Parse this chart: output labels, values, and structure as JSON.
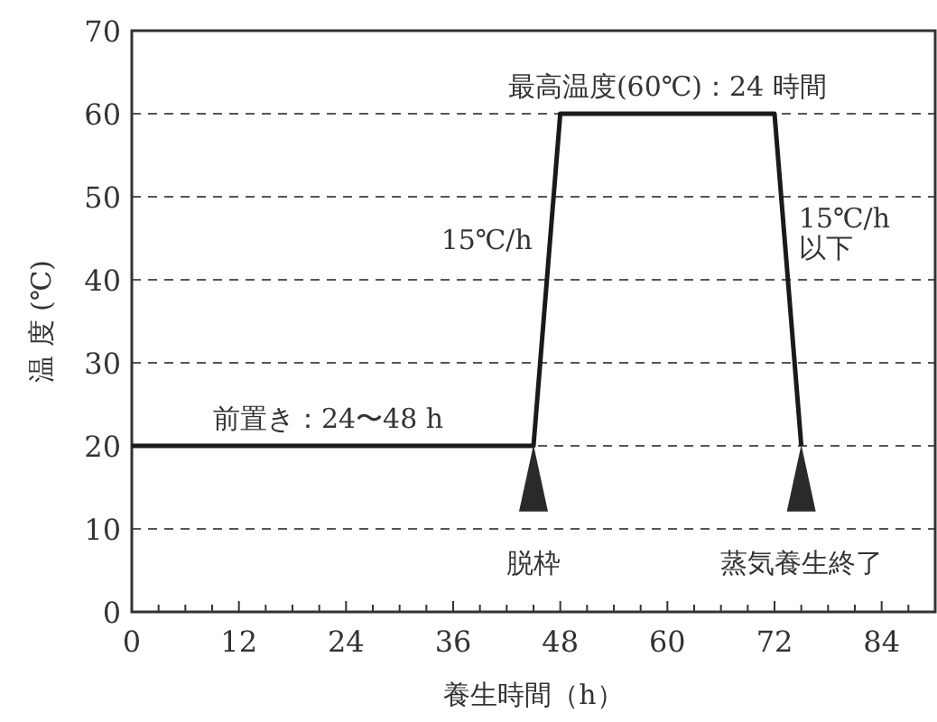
{
  "chart_data": {
    "type": "line",
    "xlabel": "養生時間（h）",
    "ylabel": "温 度 (℃)",
    "series": [
      {
        "color": "#1a1a1a",
        "x": [
          0,
          45,
          48,
          72,
          75
        ],
        "values": [
          20,
          20,
          60,
          60,
          20
        ]
      },
      {
        "type": "scatter",
        "marker": "triangle",
        "color": "#2a2a2a",
        "x": [
          45,
          75
        ],
        "values": [
          16,
          16
        ]
      }
    ],
    "xlim": [
      0,
      90
    ],
    "ylim": [
      0,
      70
    ],
    "xticks": [
      0,
      {
        "value": 3,
        "label": null
      },
      {
        "value": 6,
        "label": null
      },
      {
        "value": 9,
        "label": null
      },
      12,
      {
        "value": 15,
        "label": null
      },
      {
        "value": 18,
        "label": null
      },
      {
        "value": 21,
        "label": null
      },
      24,
      {
        "value": 27,
        "label": null
      },
      {
        "value": 30,
        "label": null
      },
      {
        "value": 33,
        "label": null
      },
      36,
      {
        "value": 39,
        "label": null
      },
      {
        "value": 42,
        "label": null
      },
      {
        "value": 45,
        "label": null
      },
      48,
      {
        "value": 51,
        "label": null
      },
      {
        "value": 54,
        "label": null
      },
      {
        "value": 57,
        "label": null
      },
      60,
      {
        "value": 63,
        "label": null
      },
      {
        "value": 66,
        "label": null
      },
      {
        "value": 69,
        "label": null
      },
      72,
      {
        "value": 75,
        "label": null
      },
      {
        "value": 78,
        "label": null
      },
      {
        "value": 81,
        "label": null
      },
      84,
      {
        "value": 87,
        "label": null
      }
    ],
    "yticks": [
      0,
      10,
      20,
      30,
      40,
      50,
      60,
      70
    ],
    "grid": "y",
    "line_style": "solid",
    "annotations": [
      {
        "text": "最高温度(60℃)：24 時間",
        "x": 60,
        "y": 60
      },
      {
        "text": "15℃/h",
        "x": 46.5,
        "y": 45
      },
      {
        "text": "15℃/h\n以下",
        "x": 73.5,
        "y": 45
      },
      {
        "text": "前置き：24〜48 h",
        "x": 22,
        "y": 20
      },
      {
        "text": "脱枠",
        "x": 45,
        "y": 12
      },
      {
        "text": "蒸気養生終了",
        "x": 75,
        "y": 12
      }
    ]
  }
}
